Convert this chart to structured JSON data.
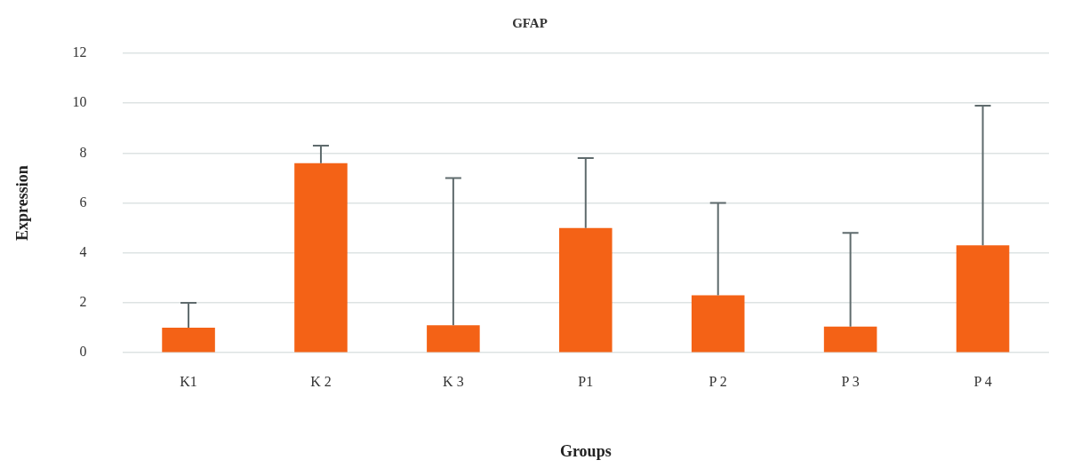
{
  "chart_data": {
    "type": "bar",
    "title": "GFAP",
    "xlabel": "Groups",
    "ylabel": "Expression",
    "categories": [
      "K1",
      "K 2",
      "K 3",
      "P1",
      "P 2",
      "P 3",
      "P 4"
    ],
    "values": [
      1.0,
      7.6,
      1.1,
      5.0,
      2.3,
      1.05,
      4.3
    ],
    "errors": [
      [
        1.0,
        2.0
      ],
      [
        7.6,
        8.3
      ],
      [
        1.1,
        7.0
      ],
      [
        5.0,
        7.8
      ],
      [
        2.3,
        6.0
      ],
      [
        1.05,
        4.8
      ],
      [
        4.3,
        9.9
      ]
    ],
    "color": "#f46216",
    "ylim": [
      0,
      12
    ],
    "yticks": [
      0,
      2,
      4,
      6,
      8,
      10,
      12
    ],
    "grid": "y",
    "legend": false
  }
}
